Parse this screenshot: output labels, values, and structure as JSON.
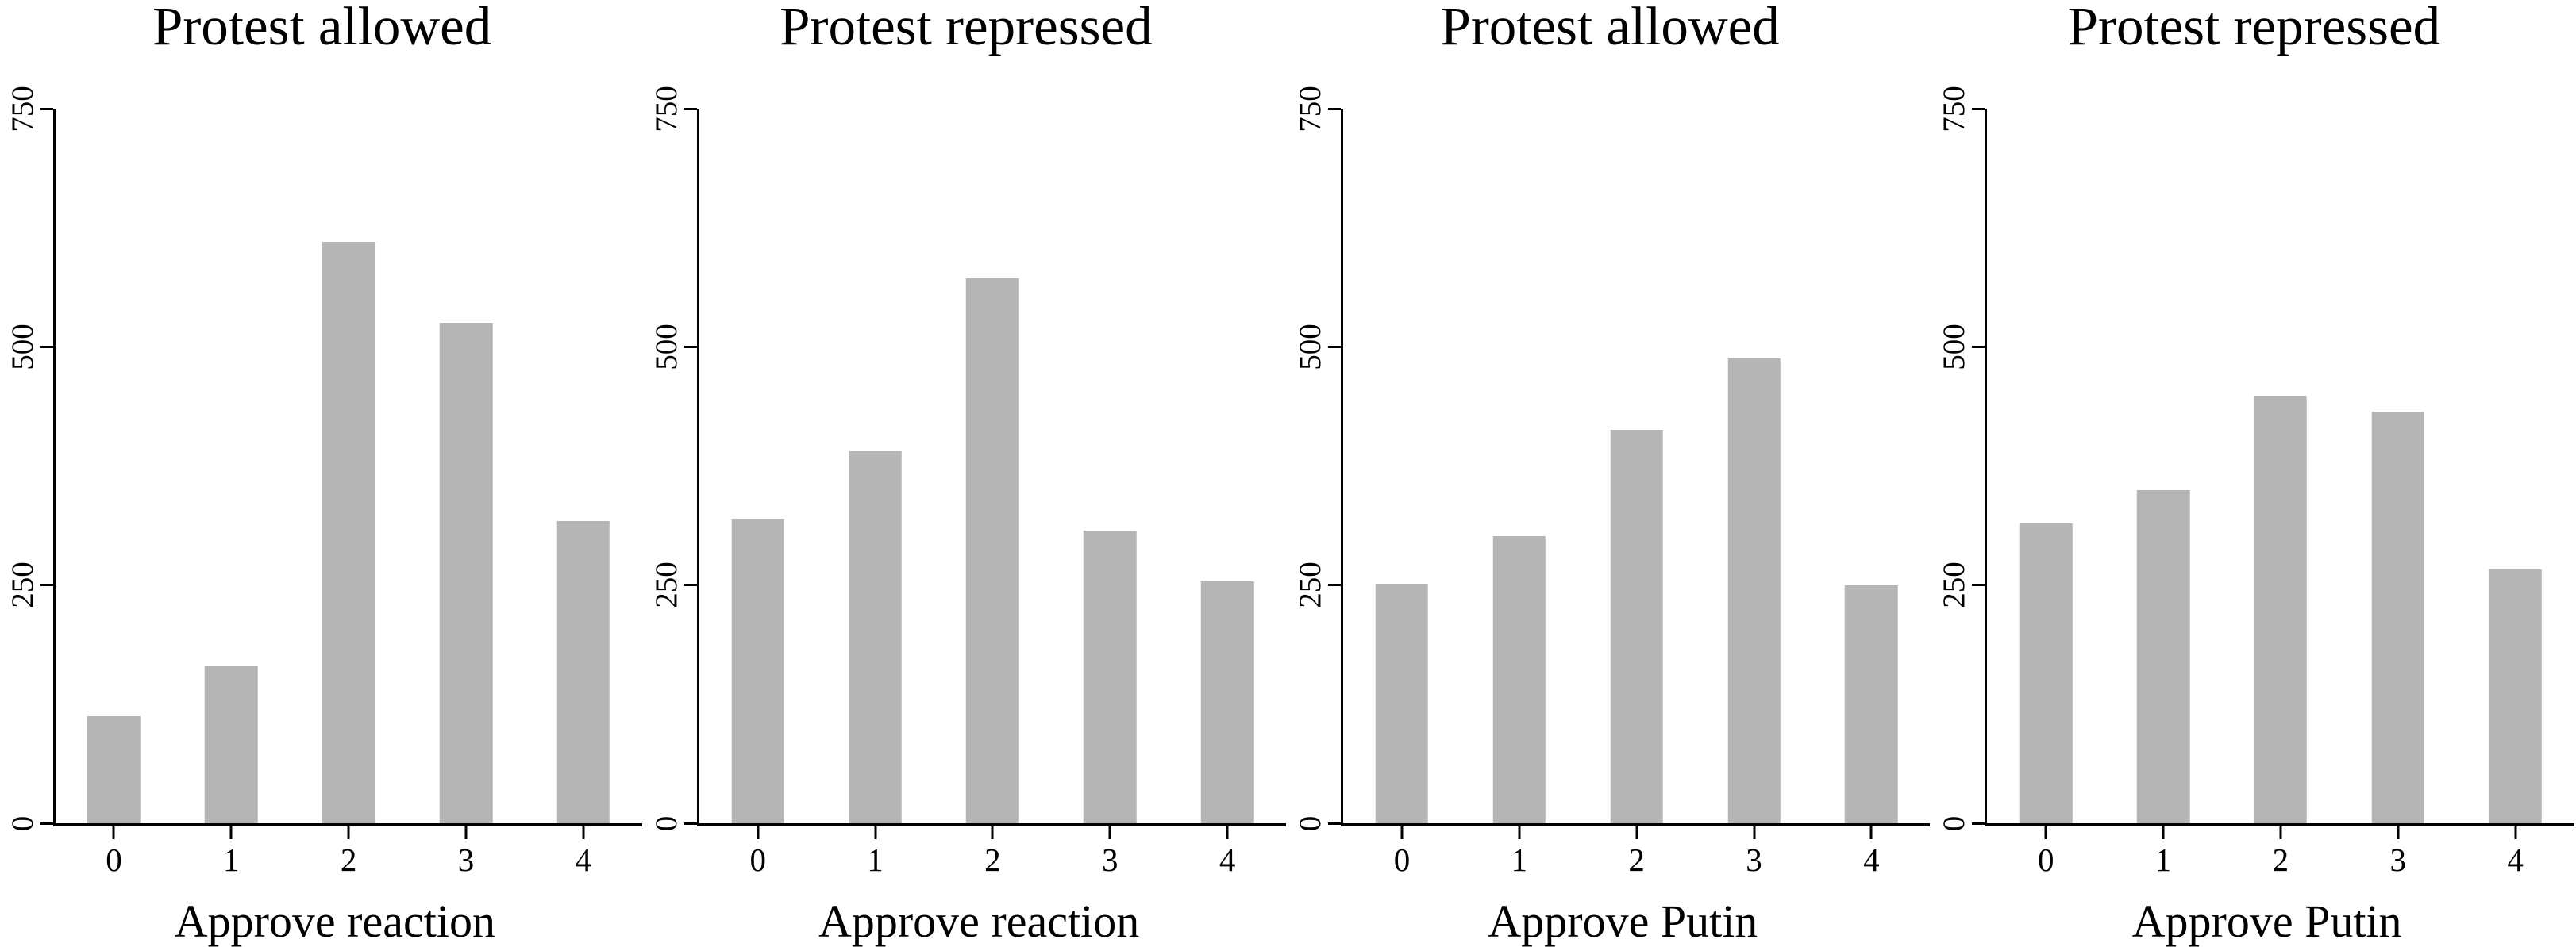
{
  "figure": {
    "background_color": "#ffffff",
    "bar_color": "#b5b5b5",
    "axis_color": "#000000",
    "text_color": "#000000",
    "layout": "1x4 horizontal panels, no gridlines, no legend"
  },
  "chart_data": [
    {
      "type": "bar",
      "title": "Protest allowed",
      "xlabel": "Approve reaction",
      "ylabel": "",
      "categories": [
        "0",
        "1",
        "2",
        "3",
        "4"
      ],
      "values": [
        112,
        165,
        610,
        525,
        317
      ],
      "ylim": [
        0,
        750
      ],
      "yticks": [
        0,
        250,
        500,
        750
      ],
      "grid": false,
      "legend_position": "none"
    },
    {
      "type": "bar",
      "title": "Protest repressed",
      "xlabel": "Approve reaction",
      "ylabel": "",
      "categories": [
        "0",
        "1",
        "2",
        "3",
        "4"
      ],
      "values": [
        320,
        390,
        572,
        307,
        254
      ],
      "ylim": [
        0,
        750
      ],
      "yticks": [
        0,
        250,
        500,
        750
      ],
      "grid": false,
      "legend_position": "none"
    },
    {
      "type": "bar",
      "title": "Protest allowed",
      "xlabel": "Approve Putin",
      "ylabel": "",
      "categories": [
        "0",
        "1",
        "2",
        "3",
        "4"
      ],
      "values": [
        251,
        301,
        413,
        488,
        250
      ],
      "ylim": [
        0,
        750
      ],
      "yticks": [
        0,
        250,
        500,
        750
      ],
      "grid": false,
      "legend_position": "none"
    },
    {
      "type": "bar",
      "title": "Protest repressed",
      "xlabel": "Approve Putin",
      "ylabel": "",
      "categories": [
        "0",
        "1",
        "2",
        "3",
        "4"
      ],
      "values": [
        315,
        350,
        449,
        432,
        266
      ],
      "ylim": [
        0,
        750
      ],
      "yticks": [
        0,
        250,
        500,
        750
      ],
      "grid": false,
      "legend_position": "none"
    }
  ]
}
